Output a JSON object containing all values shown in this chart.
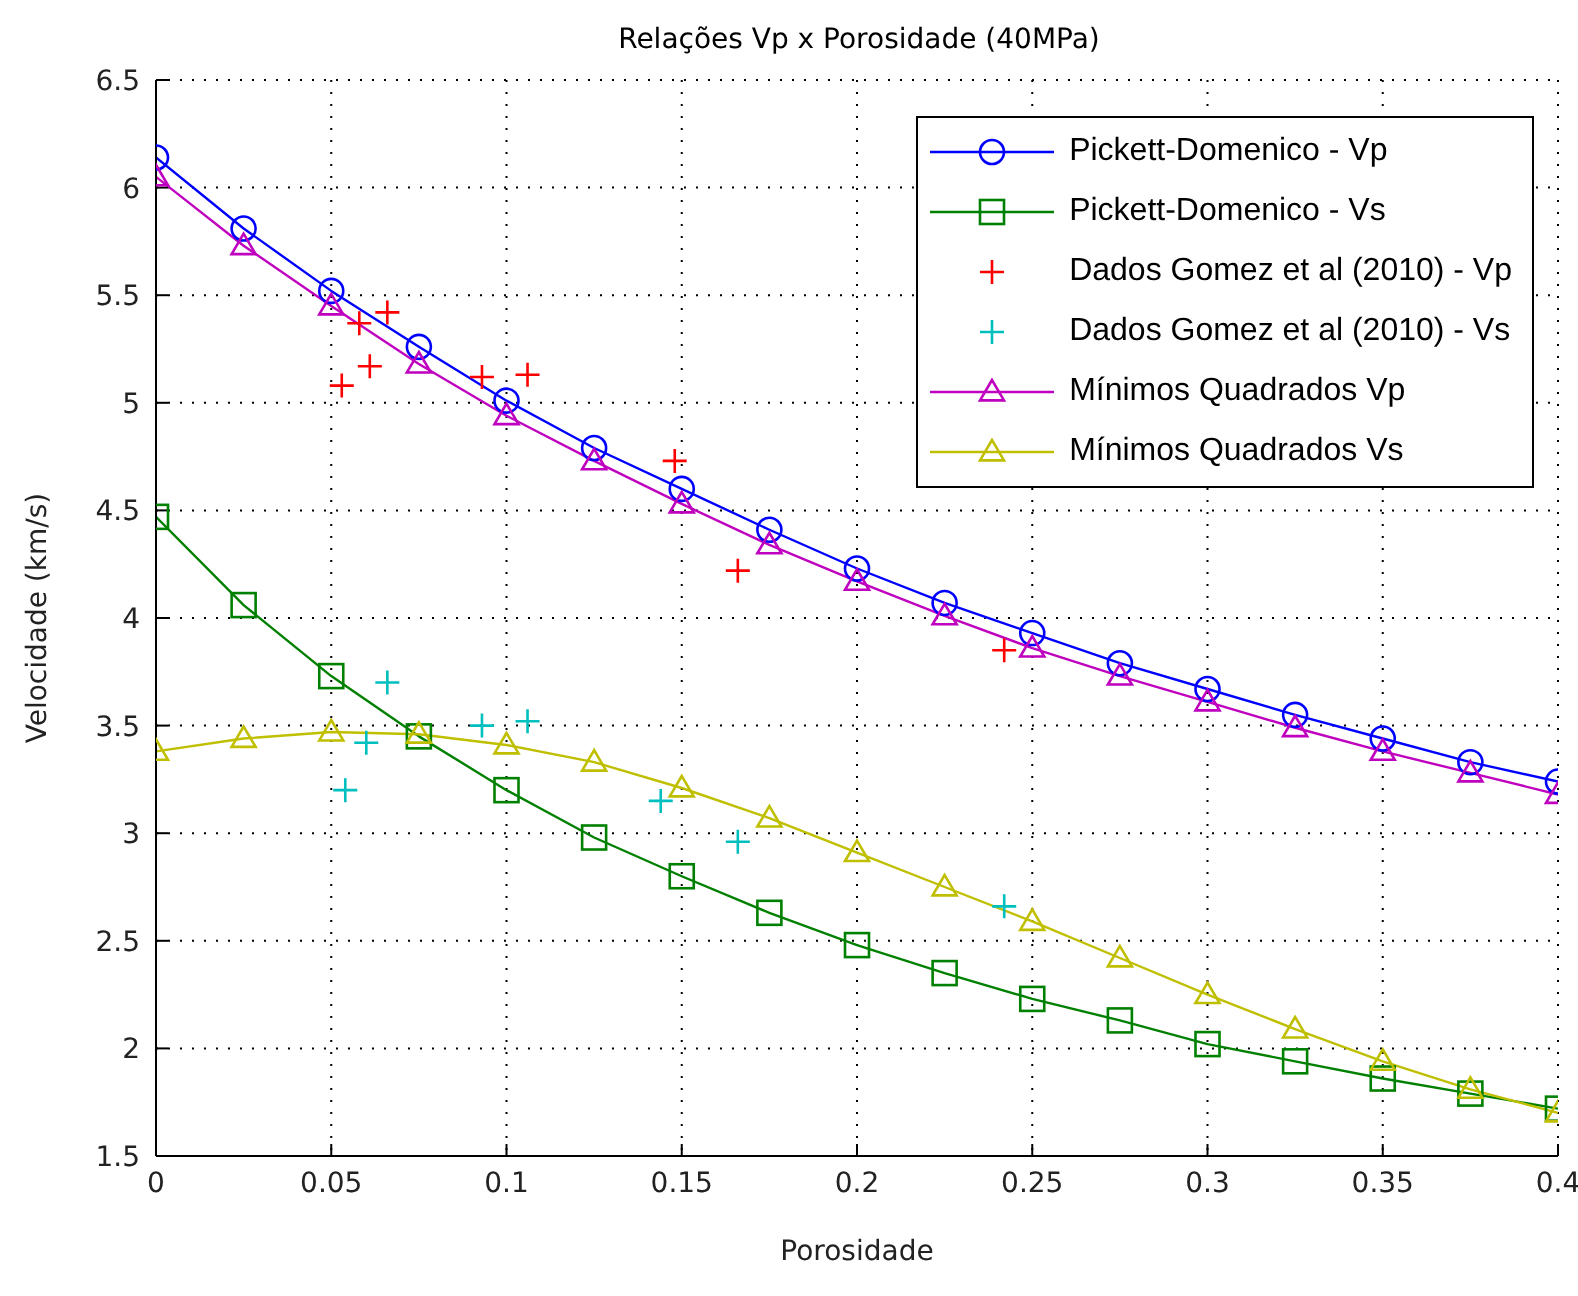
{
  "chart_data": {
    "type": "line",
    "title": "Relações Vp x Porosidade (40MPa)",
    "xlabel": "Porosidade",
    "ylabel": "Velocidade (km/s)",
    "x": [
      0,
      0.025,
      0.05,
      0.075,
      0.1,
      0.125,
      0.15,
      0.175,
      0.2,
      0.225,
      0.25,
      0.275,
      0.3,
      0.325,
      0.35,
      0.375,
      0.4
    ],
    "xlim": [
      0,
      0.4
    ],
    "xticks": [
      0,
      0.05,
      0.1,
      0.15,
      0.2,
      0.25,
      0.3,
      0.35,
      0.4
    ],
    "ylim": [
      1.5,
      6.5
    ],
    "yticks": [
      1.5,
      2,
      2.5,
      3,
      3.5,
      4,
      4.5,
      5,
      5.5,
      6,
      6.5
    ],
    "grid": true,
    "legend": "top right",
    "line_style": "solid",
    "series": [
      {
        "name": "Pickett-Domenico - Vp",
        "color": "#0000ff",
        "marker": "circle",
        "values": [
          6.14,
          5.81,
          5.52,
          5.26,
          5.01,
          4.79,
          4.6,
          4.41,
          4.23,
          4.07,
          3.93,
          3.79,
          3.67,
          3.55,
          3.44,
          3.33,
          3.24
        ]
      },
      {
        "name": "Pickett-Domenico - Vs",
        "color": "#008000",
        "marker": "square",
        "values": [
          4.47,
          4.06,
          3.73,
          3.45,
          3.2,
          2.98,
          2.8,
          2.63,
          2.48,
          2.35,
          2.23,
          2.13,
          2.02,
          1.94,
          1.86,
          1.79,
          1.72
        ]
      },
      {
        "name": "Dados Gomez et al (2010) - Vp",
        "color": "#ff0000",
        "type": "scatter",
        "marker": "cross",
        "x": [
          0.053,
          0.058,
          0.061,
          0.066,
          0.093,
          0.106,
          0.148,
          0.166,
          0.242
        ],
        "values": [
          5.08,
          5.37,
          5.17,
          5.42,
          5.12,
          5.13,
          4.73,
          4.22,
          3.85
        ]
      },
      {
        "name": "Dados Gomez et al (2010) - Vs",
        "color": "#00bfbf",
        "type": "scatter",
        "marker": "cross",
        "x": [
          0.054,
          0.06,
          0.066,
          0.093,
          0.106,
          0.144,
          0.166,
          0.242
        ],
        "values": [
          3.2,
          3.42,
          3.7,
          3.5,
          3.52,
          3.15,
          2.96,
          2.66
        ]
      },
      {
        "name": "Mínimos Quadrados Vp",
        "color": "#bf00bf",
        "marker": "triangle",
        "values": [
          6.05,
          5.73,
          5.45,
          5.18,
          4.94,
          4.73,
          4.53,
          4.34,
          4.17,
          4.01,
          3.86,
          3.73,
          3.61,
          3.49,
          3.38,
          3.28,
          3.18
        ]
      },
      {
        "name": "Mínimos Quadrados Vs",
        "color": "#bfbf00",
        "marker": "triangle",
        "values": [
          3.38,
          3.44,
          3.47,
          3.46,
          3.41,
          3.33,
          3.21,
          3.07,
          2.91,
          2.75,
          2.59,
          2.42,
          2.25,
          2.09,
          1.94,
          1.81,
          1.7
        ]
      }
    ]
  }
}
